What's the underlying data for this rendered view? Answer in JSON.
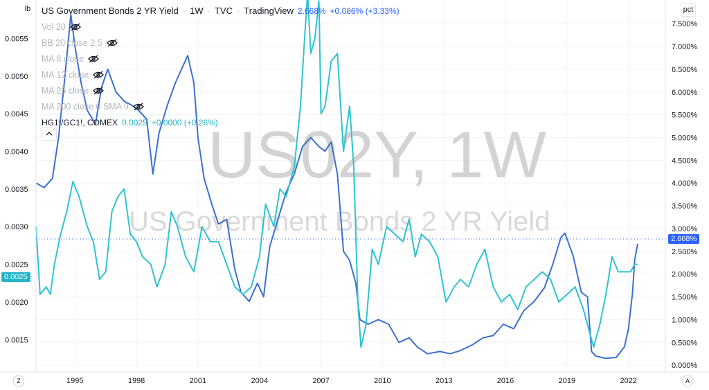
{
  "legend": {
    "title": "US Government Bonds 2 YR Yield",
    "interval": "1W",
    "exchange": "TVC",
    "source": "TradingView",
    "value": "2.668%",
    "change": "+0.086% (+3.33%)",
    "indicators": [
      "Vol 20",
      "BB 20 close 2.5",
      "MA 6 close",
      "MA 12 close",
      "MA 25 close",
      "MA 200 close 0 SMA 9"
    ],
    "copper_label": "HG1!/GC1!, COMEX",
    "copper_value": "0.0025",
    "copper_change": "+0.0000 (+0.26%)"
  },
  "watermark": {
    "symbol": "US02Y, 1W",
    "description": "US Government Bonds 2 YR Yield"
  },
  "scales": {
    "left_unit": "lb",
    "right_unit": "pct",
    "bottom_left": "Z",
    "bottom_right": "A"
  },
  "colors": {
    "yield": "#3b6fd0",
    "ratio": "#2ec3d1",
    "yield_tag": "#2962ff",
    "ratio_tag": "#22b5c8"
  },
  "chart_data": {
    "type": "line",
    "x_ticks": [
      "1995",
      "1998",
      "2001",
      "2004",
      "2007",
      "2010",
      "2013",
      "2016",
      "2019",
      "2022"
    ],
    "x_range": [
      1993.1,
      2023.8
    ],
    "left_axis": {
      "unit": "lb",
      "ticks": [
        "0.0015",
        "0.0020",
        "0.0025",
        "0.0030",
        "0.0035",
        "0.0040",
        "0.0045",
        "0.0050",
        "0.0055"
      ],
      "range": [
        0.00107,
        0.00601
      ]
    },
    "right_axis": {
      "unit": "pct",
      "ticks": [
        "0.000%",
        "0.500%",
        "1.000%",
        "1.500%",
        "2.000%",
        "2.500%",
        "3.000%",
        "3.500%",
        "4.000%",
        "4.500%",
        "5.000%",
        "5.500%",
        "6.000%",
        "6.500%",
        "7.000%",
        "7.500%"
      ],
      "range": [
        -0.15,
        8.02
      ]
    },
    "last_values": {
      "yield": "2.668%",
      "ratio": "0.0025"
    },
    "series": [
      {
        "name": "US Government Bonds 2 YR Yield",
        "axis": "right",
        "x": [
          1993.1,
          1993.5,
          1993.9,
          1994.2,
          1994.5,
          1994.8,
          1995.0,
          1995.3,
          1995.6,
          1996.0,
          1996.3,
          1996.6,
          1997.0,
          1997.4,
          1997.8,
          1998.1,
          1998.5,
          1998.8,
          1999.1,
          1999.5,
          1999.9,
          2000.2,
          2000.5,
          2000.8,
          2001.0,
          2001.3,
          2001.7,
          2002.0,
          2002.4,
          2002.8,
          2003.1,
          2003.5,
          2003.9,
          2004.2,
          2004.5,
          2004.9,
          2005.3,
          2005.7,
          2006.1,
          2006.5,
          2006.9,
          2007.2,
          2007.5,
          2007.8,
          2008.1,
          2008.4,
          2008.7,
          2008.9,
          2009.3,
          2009.8,
          2010.3,
          2010.8,
          2011.3,
          2011.7,
          2012.2,
          2012.8,
          2013.3,
          2013.8,
          2014.4,
          2014.9,
          2015.4,
          2015.9,
          2016.4,
          2016.9,
          2017.4,
          2017.9,
          2018.3,
          2018.7,
          2018.9,
          2019.3,
          2019.7,
          2020.0,
          2020.2,
          2020.4,
          2020.9,
          2021.4,
          2021.8,
          2022.0,
          2022.2,
          2022.3,
          2022.45
        ],
        "values": [
          4.0,
          3.9,
          4.1,
          5.0,
          6.3,
          7.7,
          7.0,
          6.2,
          5.6,
          5.3,
          6.1,
          6.5,
          6.0,
          5.8,
          5.7,
          5.6,
          5.4,
          4.2,
          5.1,
          5.7,
          6.2,
          6.5,
          6.8,
          6.2,
          5.0,
          4.1,
          3.5,
          3.1,
          3.2,
          2.1,
          1.6,
          1.4,
          1.8,
          1.5,
          2.6,
          3.2,
          3.8,
          4.2,
          4.8,
          5.0,
          4.8,
          4.7,
          4.9,
          4.2,
          2.5,
          2.3,
          1.8,
          1.0,
          0.9,
          1.0,
          0.9,
          0.5,
          0.6,
          0.4,
          0.25,
          0.3,
          0.25,
          0.32,
          0.45,
          0.6,
          0.65,
          0.9,
          0.8,
          1.2,
          1.4,
          1.7,
          2.2,
          2.8,
          2.9,
          2.4,
          1.6,
          1.5,
          0.3,
          0.2,
          0.15,
          0.17,
          0.4,
          0.8,
          1.6,
          2.3,
          2.668
        ]
      },
      {
        "name": "HG1!/GC1!, COMEX",
        "axis": "left",
        "x": [
          1993.1,
          1993.3,
          1993.6,
          1993.8,
          1994.0,
          1994.3,
          1994.6,
          1994.9,
          1995.2,
          1995.6,
          1995.9,
          1996.2,
          1996.5,
          1996.8,
          1997.1,
          1997.4,
          1997.7,
          1998.0,
          1998.3,
          1998.7,
          1999.0,
          1999.4,
          1999.7,
          2000.0,
          2000.4,
          2000.8,
          2001.2,
          2001.6,
          2002.0,
          2002.4,
          2002.8,
          2003.2,
          2003.6,
          2004.0,
          2004.3,
          2004.7,
          2005.0,
          2005.3,
          2005.7,
          2006.0,
          2006.2,
          2006.35,
          2006.5,
          2006.7,
          2006.9,
          2007.0,
          2007.2,
          2007.5,
          2007.8,
          2008.1,
          2008.4,
          2008.6,
          2008.8,
          2008.95,
          2009.2,
          2009.5,
          2009.8,
          2010.2,
          2010.6,
          2011.0,
          2011.3,
          2011.6,
          2011.9,
          2012.3,
          2012.7,
          2013.1,
          2013.5,
          2013.8,
          2014.2,
          2014.6,
          2015.0,
          2015.4,
          2015.8,
          2016.2,
          2016.6,
          2017.0,
          2017.4,
          2017.8,
          2018.2,
          2018.6,
          2019.0,
          2019.4,
          2019.8,
          2020.1,
          2020.3,
          2020.6,
          2020.9,
          2021.2,
          2021.5,
          2021.8,
          2022.1,
          2022.3,
          2022.45
        ],
        "values": [
          0.003,
          0.0021,
          0.0022,
          0.0021,
          0.0025,
          0.0029,
          0.0032,
          0.0036,
          0.0034,
          0.003,
          0.0028,
          0.0023,
          0.0024,
          0.0032,
          0.0034,
          0.0035,
          0.0029,
          0.0028,
          0.0026,
          0.0025,
          0.0022,
          0.0025,
          0.0032,
          0.003,
          0.0026,
          0.0024,
          0.003,
          0.0028,
          0.0028,
          0.0025,
          0.0022,
          0.0021,
          0.0022,
          0.0026,
          0.0033,
          0.003,
          0.0035,
          0.0034,
          0.0038,
          0.0046,
          0.0055,
          0.0061,
          0.0053,
          0.0055,
          0.006,
          0.0045,
          0.0046,
          0.0052,
          0.0053,
          0.004,
          0.0046,
          0.0038,
          0.002,
          0.0014,
          0.0017,
          0.0027,
          0.0025,
          0.003,
          0.0029,
          0.0028,
          0.0031,
          0.0026,
          0.0029,
          0.0028,
          0.0026,
          0.002,
          0.0022,
          0.0023,
          0.0022,
          0.0025,
          0.0027,
          0.0022,
          0.002,
          0.0021,
          0.0019,
          0.0022,
          0.0023,
          0.0024,
          0.0023,
          0.002,
          0.0021,
          0.0022,
          0.0019,
          0.0016,
          0.0014,
          0.0017,
          0.0021,
          0.0026,
          0.0024,
          0.0024,
          0.0024,
          0.0025,
          0.0025
        ]
      }
    ],
    "grid": true,
    "legend_position": "top-left"
  }
}
